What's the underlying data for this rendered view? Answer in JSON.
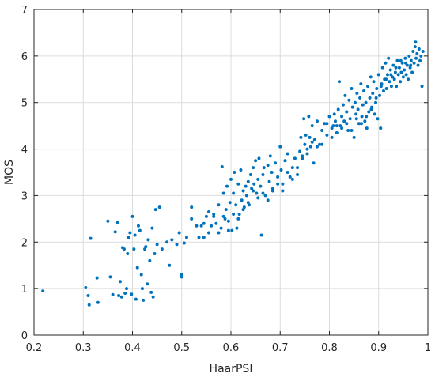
{
  "chart_data": {
    "type": "scatter",
    "title": "",
    "xlabel": "HaarPSI",
    "ylabel": "MOS",
    "xlim": [
      0.2,
      1
    ],
    "ylim": [
      0,
      7
    ],
    "xticks": [
      0.2,
      0.3,
      0.4,
      0.5,
      0.6,
      0.7,
      0.8,
      0.9,
      1
    ],
    "xtick_labels": [
      "0.2",
      "0.3",
      "0.4",
      "0.5",
      "0.6",
      "0.7",
      "0.8",
      "0.9",
      "1"
    ],
    "yticks": [
      0,
      1,
      2,
      3,
      4,
      5,
      6,
      7
    ],
    "ytick_labels": [
      "0",
      "1",
      "2",
      "3",
      "4",
      "5",
      "6",
      "7"
    ],
    "grid": true,
    "marker_color": "#0072BD",
    "grid_color": "#dcdcdc",
    "axis_color": "#262626",
    "points": [
      [
        0.218,
        0.95
      ],
      [
        0.305,
        1.02
      ],
      [
        0.31,
        0.85
      ],
      [
        0.312,
        0.65
      ],
      [
        0.315,
        2.08
      ],
      [
        0.328,
        1.23
      ],
      [
        0.33,
        0.7
      ],
      [
        0.35,
        2.45
      ],
      [
        0.355,
        1.25
      ],
      [
        0.36,
        0.87
      ],
      [
        0.365,
        2.22
      ],
      [
        0.37,
        2.42
      ],
      [
        0.372,
        0.85
      ],
      [
        0.375,
        1.15
      ],
      [
        0.378,
        0.82
      ],
      [
        0.38,
        1.88
      ],
      [
        0.383,
        1.85
      ],
      [
        0.385,
        0.9
      ],
      [
        0.388,
        1.0
      ],
      [
        0.39,
        1.75
      ],
      [
        0.392,
        2.1
      ],
      [
        0.395,
        2.2
      ],
      [
        0.398,
        0.88
      ],
      [
        0.4,
        2.55
      ],
      [
        0.403,
        1.85
      ],
      [
        0.405,
        2.15
      ],
      [
        0.407,
        0.77
      ],
      [
        0.41,
        1.45
      ],
      [
        0.412,
        2.35
      ],
      [
        0.415,
        2.25
      ],
      [
        0.418,
        1.3
      ],
      [
        0.42,
        1.0
      ],
      [
        0.422,
        0.75
      ],
      [
        0.425,
        1.85
      ],
      [
        0.427,
        1.9
      ],
      [
        0.43,
        1.1
      ],
      [
        0.432,
        2.05
      ],
      [
        0.435,
        1.6
      ],
      [
        0.438,
        0.92
      ],
      [
        0.44,
        2.3
      ],
      [
        0.442,
        0.82
      ],
      [
        0.445,
        1.75
      ],
      [
        0.447,
        2.7
      ],
      [
        0.45,
        1.95
      ],
      [
        0.455,
        2.75
      ],
      [
        0.46,
        1.85
      ],
      [
        0.47,
        2.0
      ],
      [
        0.475,
        1.5
      ],
      [
        0.48,
        2.05
      ],
      [
        0.49,
        1.95
      ],
      [
        0.495,
        2.2
      ],
      [
        0.5,
        1.25
      ],
      [
        0.5,
        1.3
      ],
      [
        0.505,
        1.98
      ],
      [
        0.51,
        2.1
      ],
      [
        0.52,
        2.5
      ],
      [
        0.52,
        2.75
      ],
      [
        0.53,
        2.35
      ],
      [
        0.535,
        2.1
      ],
      [
        0.54,
        2.35
      ],
      [
        0.545,
        2.1
      ],
      [
        0.55,
        2.55
      ],
      [
        0.555,
        2.65
      ],
      [
        0.56,
        2.35
      ],
      [
        0.565,
        2.55
      ],
      [
        0.57,
        2.4
      ],
      [
        0.575,
        2.8
      ],
      [
        0.58,
        2.3
      ],
      [
        0.582,
        3.62
      ],
      [
        0.585,
        3.05
      ],
      [
        0.588,
        2.5
      ],
      [
        0.59,
        2.7
      ],
      [
        0.592,
        3.2
      ],
      [
        0.595,
        2.25
      ],
      [
        0.598,
        2.85
      ],
      [
        0.6,
        3.35
      ],
      [
        0.602,
        2.25
      ],
      [
        0.605,
        3.05
      ],
      [
        0.607,
        3.5
      ],
      [
        0.61,
        2.8
      ],
      [
        0.612,
        2.3
      ],
      [
        0.615,
        3.25
      ],
      [
        0.617,
        2.6
      ],
      [
        0.62,
        3.55
      ],
      [
        0.622,
        2.9
      ],
      [
        0.625,
        3.1
      ],
      [
        0.627,
        2.75
      ],
      [
        0.63,
        3.2
      ],
      [
        0.632,
        3.0
      ],
      [
        0.635,
        3.3
      ],
      [
        0.637,
        2.8
      ],
      [
        0.64,
        3.45
      ],
      [
        0.642,
        3.15
      ],
      [
        0.645,
        3.6
      ],
      [
        0.647,
        3.25
      ],
      [
        0.65,
        3.75
      ],
      [
        0.652,
        3.05
      ],
      [
        0.655,
        3.35
      ],
      [
        0.657,
        3.8
      ],
      [
        0.66,
        3.2
      ],
      [
        0.662,
        2.15
      ],
      [
        0.665,
        3.45
      ],
      [
        0.667,
        3.6
      ],
      [
        0.67,
        3.0
      ],
      [
        0.675,
        3.65
      ],
      [
        0.678,
        3.3
      ],
      [
        0.68,
        3.85
      ],
      [
        0.683,
        3.5
      ],
      [
        0.685,
        3.1
      ],
      [
        0.69,
        3.7
      ],
      [
        0.695,
        3.4
      ],
      [
        0.7,
        4.05
      ],
      [
        0.702,
        3.55
      ],
      [
        0.705,
        3.25
      ],
      [
        0.71,
        3.75
      ],
      [
        0.715,
        3.9
      ],
      [
        0.72,
        3.4
      ],
      [
        0.725,
        3.6
      ],
      [
        0.73,
        3.8
      ],
      [
        0.735,
        3.45
      ],
      [
        0.74,
        3.95
      ],
      [
        0.742,
        4.25
      ],
      [
        0.745,
        3.85
      ],
      [
        0.748,
        4.65
      ],
      [
        0.75,
        4.1
      ],
      [
        0.752,
        4.3
      ],
      [
        0.755,
        3.9
      ],
      [
        0.758,
        4.7
      ],
      [
        0.76,
        4.25
      ],
      [
        0.762,
        4.05
      ],
      [
        0.765,
        4.5
      ],
      [
        0.768,
        3.7
      ],
      [
        0.77,
        4.2
      ],
      [
        0.775,
        4.6
      ],
      [
        0.78,
        4.1
      ],
      [
        0.785,
        4.4
      ],
      [
        0.79,
        4.55
      ],
      [
        0.795,
        4.3
      ],
      [
        0.8,
        4.7
      ],
      [
        0.805,
        4.45
      ],
      [
        0.808,
        4.5
      ],
      [
        0.81,
        4.75
      ],
      [
        0.812,
        4.6
      ],
      [
        0.815,
        4.35
      ],
      [
        0.818,
        4.85
      ],
      [
        0.82,
        5.45
      ],
      [
        0.822,
        4.5
      ],
      [
        0.825,
        4.7
      ],
      [
        0.828,
        4.95
      ],
      [
        0.83,
        4.6
      ],
      [
        0.832,
        5.15
      ],
      [
        0.835,
        4.8
      ],
      [
        0.838,
        4.4
      ],
      [
        0.84,
        5.05
      ],
      [
        0.842,
        4.65
      ],
      [
        0.845,
        5.3
      ],
      [
        0.847,
        4.9
      ],
      [
        0.85,
        4.25
      ],
      [
        0.852,
        5.0
      ],
      [
        0.854,
        4.75
      ],
      [
        0.856,
        5.2
      ],
      [
        0.858,
        4.85
      ],
      [
        0.86,
        4.55
      ],
      [
        0.862,
        5.1
      ],
      [
        0.864,
        5.4
      ],
      [
        0.866,
        4.7
      ],
      [
        0.868,
        4.95
      ],
      [
        0.87,
        5.25
      ],
      [
        0.872,
        4.6
      ],
      [
        0.874,
        5.0
      ],
      [
        0.876,
        4.45
      ],
      [
        0.878,
        5.35
      ],
      [
        0.88,
        4.8
      ],
      [
        0.882,
        5.1
      ],
      [
        0.884,
        5.55
      ],
      [
        0.886,
        4.9
      ],
      [
        0.888,
        5.2
      ],
      [
        0.89,
        5.45
      ],
      [
        0.892,
        4.75
      ],
      [
        0.894,
        5.0
      ],
      [
        0.896,
        5.3
      ],
      [
        0.898,
        4.65
      ],
      [
        0.9,
        5.6
      ],
      [
        0.902,
        5.15
      ],
      [
        0.904,
        4.45
      ],
      [
        0.906,
        5.4
      ],
      [
        0.908,
        5.75
      ],
      [
        0.91,
        5.25
      ],
      [
        0.912,
        5.5
      ],
      [
        0.914,
        5.85
      ],
      [
        0.916,
        5.3
      ],
      [
        0.918,
        5.6
      ],
      [
        0.92,
        5.95
      ],
      [
        0.922,
        5.45
      ],
      [
        0.924,
        5.7
      ],
      [
        0.926,
        5.35
      ],
      [
        0.928,
        5.55
      ],
      [
        0.93,
        5.8
      ],
      [
        0.932,
        5.5
      ],
      [
        0.934,
        5.65
      ],
      [
        0.936,
        5.35
      ],
      [
        0.938,
        5.9
      ],
      [
        0.94,
        5.6
      ],
      [
        0.942,
        5.75
      ],
      [
        0.944,
        5.45
      ],
      [
        0.946,
        5.65
      ],
      [
        0.948,
        5.85
      ],
      [
        0.95,
        5.55
      ],
      [
        0.952,
        5.7
      ],
      [
        0.954,
        5.95
      ],
      [
        0.956,
        5.6
      ],
      [
        0.958,
        5.8
      ],
      [
        0.96,
        5.5
      ],
      [
        0.962,
        6.0
      ],
      [
        0.964,
        5.75
      ],
      [
        0.966,
        5.9
      ],
      [
        0.968,
        5.65
      ],
      [
        0.97,
        6.1
      ],
      [
        0.972,
        5.85
      ],
      [
        0.974,
        6.2
      ],
      [
        0.976,
        5.95
      ],
      [
        0.978,
        6.05
      ],
      [
        0.98,
        5.8
      ],
      [
        0.982,
        6.15
      ],
      [
        0.984,
        5.9
      ],
      [
        0.986,
        6.0
      ],
      [
        0.988,
        5.35
      ],
      [
        0.99,
        6.1
      ],
      [
        0.975,
        6.3
      ],
      [
        0.965,
        5.8
      ],
      [
        0.955,
        5.85
      ],
      [
        0.945,
        5.9
      ],
      [
        0.935,
        5.75
      ],
      [
        0.925,
        5.6
      ],
      [
        0.915,
        5.5
      ],
      [
        0.905,
        5.35
      ],
      [
        0.895,
        5.1
      ],
      [
        0.885,
        4.85
      ],
      [
        0.875,
        4.7
      ],
      [
        0.865,
        4.55
      ],
      [
        0.855,
        4.65
      ],
      [
        0.845,
        4.4
      ],
      [
        0.835,
        4.55
      ],
      [
        0.825,
        4.45
      ],
      [
        0.815,
        4.5
      ],
      [
        0.805,
        4.25
      ],
      [
        0.795,
        4.55
      ],
      [
        0.785,
        4.1
      ],
      [
        0.775,
        4.05
      ],
      [
        0.765,
        4.15
      ],
      [
        0.755,
        4.0
      ],
      [
        0.745,
        3.8
      ],
      [
        0.735,
        3.6
      ],
      [
        0.725,
        3.35
      ],
      [
        0.715,
        3.5
      ],
      [
        0.705,
        3.1
      ],
      [
        0.695,
        3.25
      ],
      [
        0.685,
        3.15
      ],
      [
        0.675,
        2.9
      ],
      [
        0.665,
        3.05
      ],
      [
        0.655,
        2.95
      ],
      [
        0.645,
        3.1
      ],
      [
        0.635,
        2.85
      ],
      [
        0.625,
        2.7
      ],
      [
        0.615,
        2.5
      ],
      [
        0.605,
        2.6
      ],
      [
        0.595,
        2.45
      ],
      [
        0.585,
        2.55
      ],
      [
        0.575,
        2.2
      ],
      [
        0.565,
        2.6
      ],
      [
        0.555,
        2.2
      ],
      [
        0.545,
        2.4
      ]
    ]
  }
}
